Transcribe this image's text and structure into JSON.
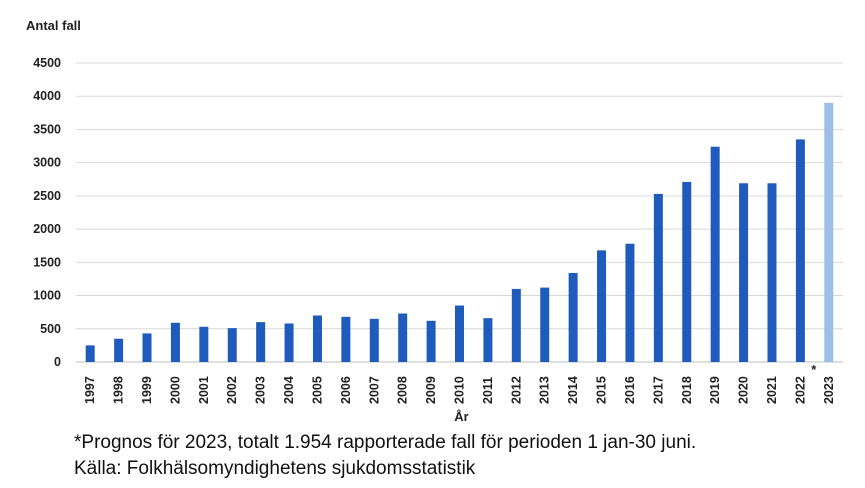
{
  "chart_data": {
    "type": "bar",
    "ylabel": "Antal fall",
    "xlabel": "År",
    "ylim": [
      0,
      4500
    ],
    "yticks": [
      0,
      500,
      1000,
      1500,
      2000,
      2500,
      3000,
      3500,
      4000,
      4500
    ],
    "grid": true,
    "categories": [
      "1997",
      "1998",
      "1999",
      "2000",
      "2001",
      "2002",
      "2003",
      "2004",
      "2005",
      "2006",
      "2007",
      "2008",
      "2009",
      "2010",
      "2011",
      "2012",
      "2013",
      "2014",
      "2015",
      "2016",
      "2017",
      "2018",
      "2019",
      "2020",
      "2021",
      "2022",
      "2023"
    ],
    "values": [
      250,
      350,
      430,
      590,
      530,
      510,
      600,
      580,
      700,
      680,
      650,
      730,
      620,
      850,
      660,
      1100,
      1120,
      1340,
      1680,
      1780,
      2530,
      2710,
      3240,
      2690,
      2690,
      3350,
      3900
    ],
    "bar_color": "#1f5bbd",
    "forecast_color": "#9dbfe6",
    "forecast_marker": "*",
    "forecast_index": 26
  },
  "footnotes": {
    "line1": "*Prognos för 2023, totalt 1.954 rapporterade fall för perioden 1 jan-30 juni.",
    "line2": "Källa: Folkhälsomyndighetens sjukdomsstatistik"
  }
}
